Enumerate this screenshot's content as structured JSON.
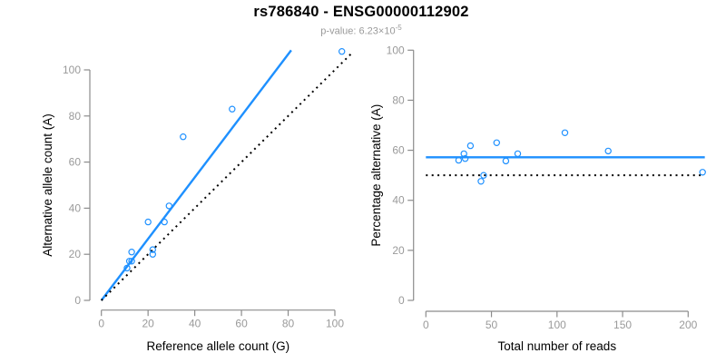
{
  "header": {
    "title": "rs786840 - ENSG00000112902",
    "subtitle_prefix": "p-value: 6.23×10",
    "subtitle_exponent": "-5"
  },
  "colors": {
    "accent_blue": "#1E90FF",
    "dotted_black": "#000000",
    "axis_gray": "#8c8c8c",
    "tick_label_gray": "#9a9a9a",
    "axis_title_black": "#000000"
  },
  "chart_data": [
    {
      "id": "allele-counts",
      "type": "scatter",
      "xlabel": "Reference allele count (G)",
      "ylabel": "Alternative allele count (A)",
      "x_ticks": [
        0,
        20,
        40,
        60,
        80,
        100
      ],
      "y_ticks": [
        0,
        20,
        40,
        60,
        80,
        100
      ],
      "xlim": [
        0,
        107
      ],
      "ylim": [
        0,
        108.5
      ],
      "grid": false,
      "points": [
        [
          11,
          14
        ],
        [
          12,
          17
        ],
        [
          13,
          17
        ],
        [
          13,
          21
        ],
        [
          20,
          34
        ],
        [
          22,
          20
        ],
        [
          22,
          22
        ],
        [
          27,
          34
        ],
        [
          29,
          41
        ],
        [
          35,
          71
        ],
        [
          56,
          83
        ],
        [
          103,
          108
        ]
      ],
      "lines": [
        {
          "name": "fit",
          "style": "solid",
          "color": "#1E90FF",
          "from": [
            0,
            0
          ],
          "to": [
            81.3,
            108.5
          ]
        },
        {
          "name": "identity",
          "style": "dotted",
          "color": "#000000",
          "from": [
            0,
            0
          ],
          "to": [
            107.3,
            107.3
          ]
        }
      ]
    },
    {
      "id": "percentage-reads",
      "type": "scatter",
      "xlabel": "Total number of reads",
      "ylabel": "Percentage alternative (A)",
      "x_ticks": [
        0,
        50,
        100,
        150,
        200
      ],
      "y_ticks": [
        0,
        20,
        40,
        60,
        80,
        100
      ],
      "xlim": [
        0,
        213
      ],
      "ylim": [
        0,
        100
      ],
      "grid": false,
      "points": [
        [
          25,
          56.0
        ],
        [
          29,
          58.6
        ],
        [
          30,
          56.7
        ],
        [
          34,
          61.8
        ],
        [
          42,
          47.6
        ],
        [
          44,
          50.0
        ],
        [
          54,
          63.0
        ],
        [
          61,
          55.7
        ],
        [
          70,
          58.6
        ],
        [
          106,
          67.0
        ],
        [
          139,
          59.7
        ],
        [
          211,
          51.2
        ]
      ],
      "lines": [
        {
          "name": "mean-percentage",
          "style": "solid",
          "color": "#1E90FF",
          "from": [
            0,
            57.2
          ],
          "to": [
            212.7,
            57.2
          ]
        },
        {
          "name": "null-fifty",
          "style": "dotted",
          "color": "#000000",
          "from": [
            0,
            50
          ],
          "to": [
            211.5,
            50
          ]
        }
      ]
    }
  ]
}
